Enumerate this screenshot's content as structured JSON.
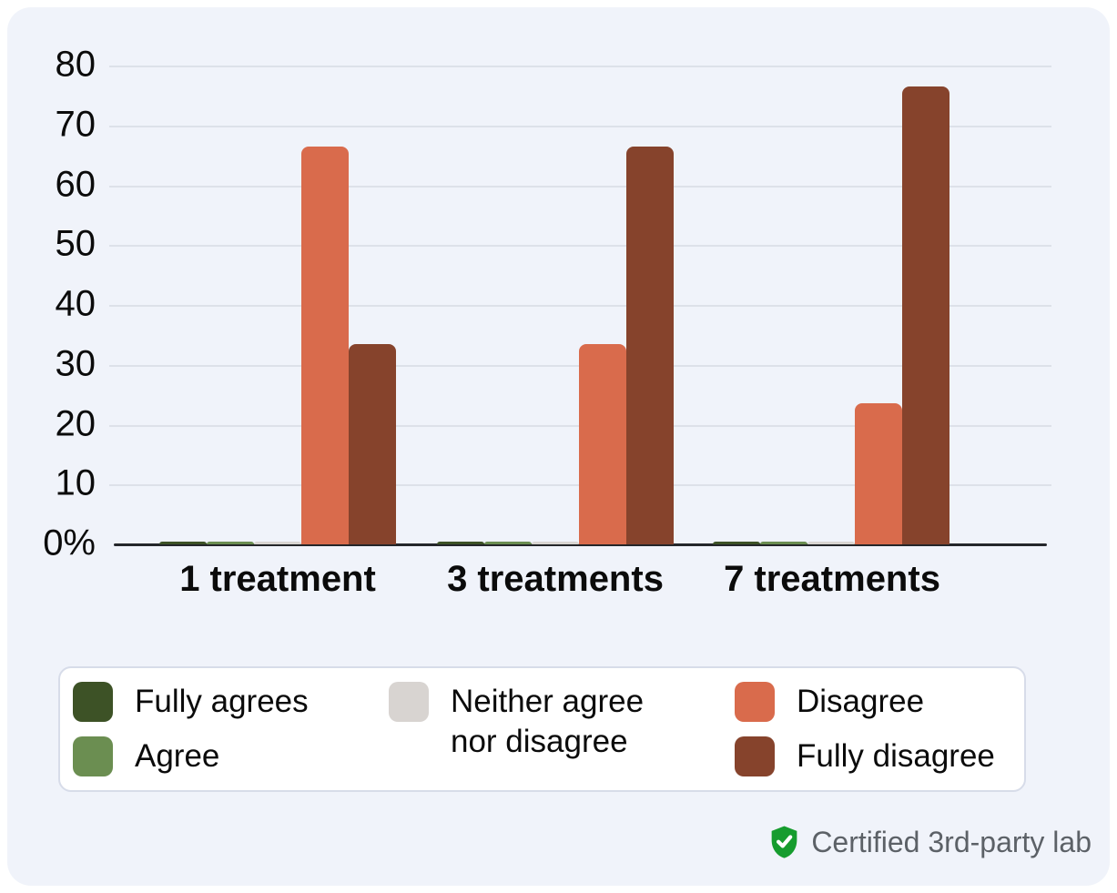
{
  "chart_data": {
    "type": "bar",
    "title": "",
    "xlabel": "",
    "ylabel": "",
    "unit": "percent",
    "categories": [
      "1 treatment",
      "3 treatments",
      "7 treatments"
    ],
    "series": [
      {
        "name": "Fully agrees",
        "color": "#3d5226",
        "values": [
          0.5,
          0.5,
          0.5
        ]
      },
      {
        "name": "Agree",
        "color": "#6b8e51",
        "values": [
          0.5,
          0.5,
          0.5
        ]
      },
      {
        "name": "Neither agree nor disagree",
        "color": "#d8d4d1",
        "values": [
          0.5,
          0.5,
          0.5
        ]
      },
      {
        "name": "Disagree",
        "color": "#d96b4c",
        "values": [
          66.5,
          33.5,
          23.5
        ]
      },
      {
        "name": "Fully disagree",
        "color": "#86432c",
        "values": [
          33.5,
          66.5,
          76.5
        ]
      }
    ],
    "ylim": [
      0,
      80
    ],
    "yticks": [
      {
        "value": 0,
        "label": "0%"
      },
      {
        "value": 10,
        "label": "10"
      },
      {
        "value": 20,
        "label": "20"
      },
      {
        "value": 30,
        "label": "30"
      },
      {
        "value": 40,
        "label": "40"
      },
      {
        "value": 50,
        "label": "50"
      },
      {
        "value": 60,
        "label": "60"
      },
      {
        "value": 70,
        "label": "70"
      },
      {
        "value": 80,
        "label": "80"
      }
    ],
    "grid": true,
    "legend_position": "bottom"
  },
  "legend": {
    "columns": [
      [
        {
          "series": 0,
          "label": "Fully agrees"
        },
        {
          "series": 1,
          "label": "Agree"
        }
      ],
      [
        {
          "series": 2,
          "label": "Neither agree nor disagree"
        }
      ],
      [
        {
          "series": 3,
          "label": "Disagree"
        },
        {
          "series": 4,
          "label": "Fully disagree"
        }
      ]
    ]
  },
  "footer": {
    "certified_label": "Certified 3rd-party lab"
  },
  "colors": {
    "card_background": "#f0f3fa",
    "gridline": "#dde1e9",
    "axis": "#24262a",
    "legend_border": "#d7dce9",
    "shield_green": "#169c2e",
    "certified_text": "#5c6167"
  }
}
